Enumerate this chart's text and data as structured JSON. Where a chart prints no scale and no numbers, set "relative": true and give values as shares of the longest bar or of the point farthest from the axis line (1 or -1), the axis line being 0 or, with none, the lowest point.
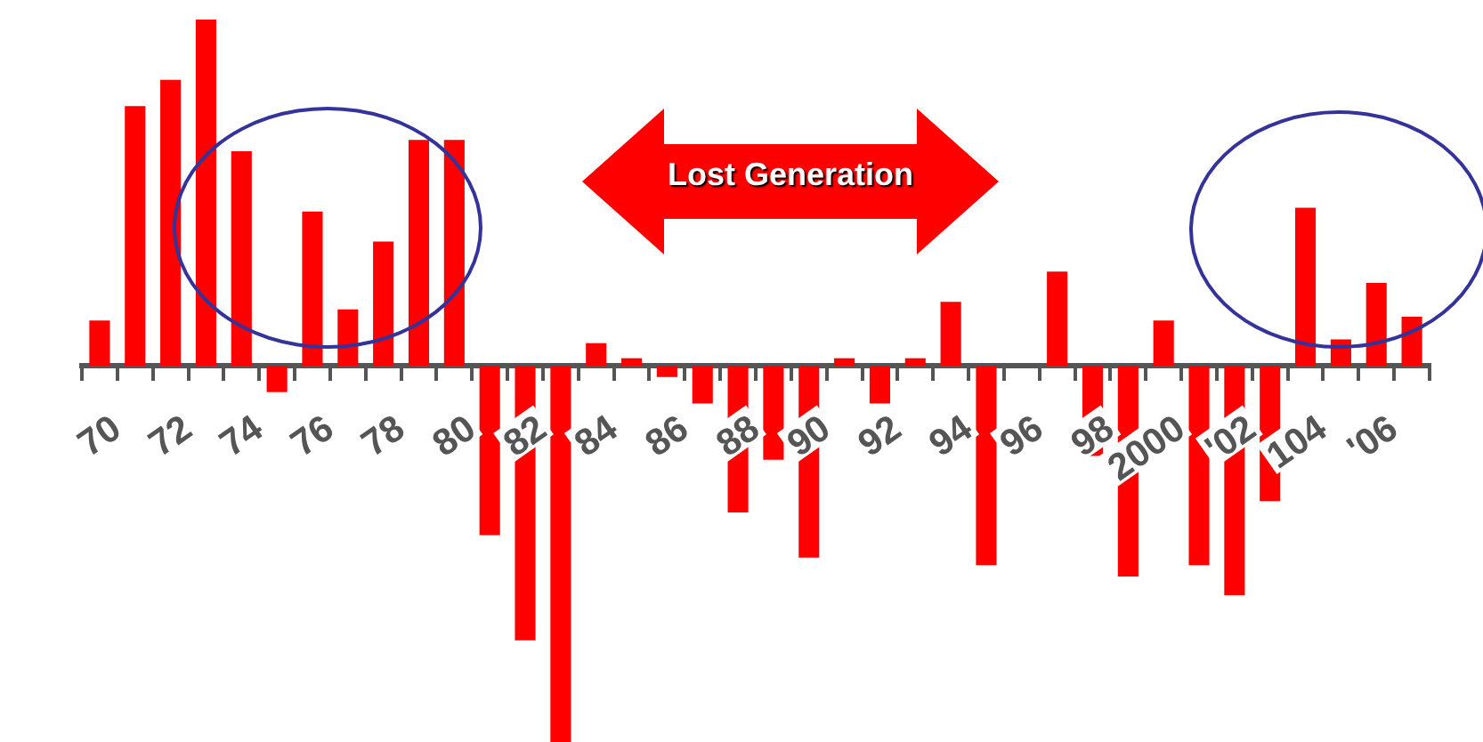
{
  "chart_data": {
    "type": "bar",
    "relative": true,
    "color": "#ff0000",
    "categories": [
      "70",
      null,
      "72",
      null,
      "74",
      null,
      "76",
      null,
      "78",
      null,
      "80",
      null,
      "82",
      null,
      "84",
      null,
      "86",
      null,
      "88",
      null,
      "90",
      null,
      "92",
      null,
      "94",
      null,
      "96",
      null,
      "98",
      null,
      "2000",
      null,
      "'02",
      null,
      "104",
      null,
      "'06",
      null
    ],
    "values": [
      0.12,
      0.69,
      0.76,
      0.92,
      0.57,
      -0.07,
      0.41,
      0.15,
      0.33,
      0.6,
      0.6,
      -0.45,
      -0.73,
      -1,
      0.06,
      0.02,
      -0.03,
      -0.1,
      -0.39,
      -0.25,
      -0.51,
      0.02,
      -0.1,
      0.02,
      0.17,
      -0.53,
      0,
      0.25,
      -0.24,
      -0.56,
      0.12,
      -0.53,
      -0.61,
      -0.36,
      0.42,
      0.07,
      0.22,
      0.13
    ],
    "annotations": [
      "Lost Generation"
    ],
    "legend": false,
    "grid": false
  }
}
